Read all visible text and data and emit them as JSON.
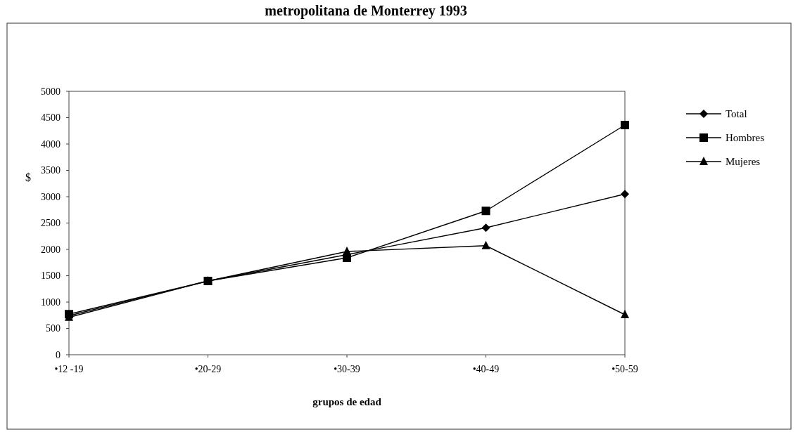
{
  "chart_data": {
    "type": "line",
    "title": "metropolitana de Monterrey 1993",
    "xlabel": "grupos de edad",
    "ylabel": "$",
    "categories": [
      "•12 -19",
      "•20-29",
      "•30-39",
      "•40-49",
      "•50-59"
    ],
    "series": [
      {
        "name": "Total",
        "color": "#000000",
        "marker": "diamond",
        "values": [
          740,
          1400,
          1900,
          2410,
          3050
        ]
      },
      {
        "name": "Hombres",
        "color": "#000000",
        "marker": "square",
        "values": [
          770,
          1400,
          1840,
          2730,
          4360
        ]
      },
      {
        "name": "Mujeres",
        "color": "#000000",
        "marker": "triangle",
        "values": [
          710,
          1400,
          1960,
          2070,
          760
        ]
      }
    ],
    "ylim": [
      0,
      5000
    ],
    "yticks": [
      0,
      500,
      1000,
      1500,
      2000,
      2500,
      3000,
      3500,
      4000,
      4500,
      5000
    ],
    "grid": false,
    "legend": "right",
    "line_style": "solid"
  }
}
